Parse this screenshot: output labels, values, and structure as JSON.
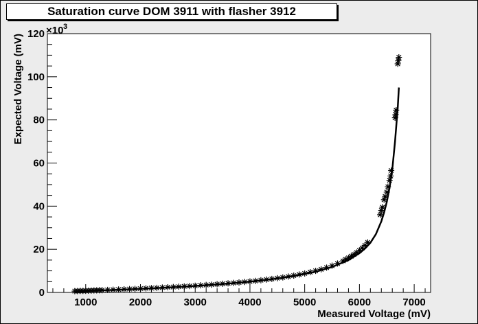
{
  "chart_data": {
    "type": "scatter",
    "title": "Saturation curve DOM 3911 with flasher 3912",
    "xlabel": "Measured Voltage (mV)",
    "ylabel": "Expected Voltage (mV)",
    "y_multiplier_label": "×10",
    "y_multiplier_exponent": "3",
    "xlim": [
      300,
      7300
    ],
    "ylim": [
      0,
      120000
    ],
    "x_ticks": [
      1000,
      2000,
      3000,
      4000,
      5000,
      6000,
      7000
    ],
    "x_tick_labels": [
      "1000",
      "2000",
      "3000",
      "4000",
      "5000",
      "6000",
      "7000"
    ],
    "y_ticks": [
      0,
      20000,
      40000,
      60000,
      80000,
      100000,
      120000
    ],
    "y_tick_labels": [
      "0",
      "20",
      "40",
      "60",
      "80",
      "100",
      "120"
    ],
    "grid": false,
    "marker": "*",
    "colors": {
      "frame_bg": "#ececec",
      "plot_bg": "#ffffff",
      "ink": "#000000"
    },
    "series": [
      {
        "points": [
          [
            800,
            600
          ],
          [
            850,
            650
          ],
          [
            900,
            700
          ],
          [
            950,
            700
          ],
          [
            1000,
            750
          ],
          [
            1050,
            800
          ],
          [
            1100,
            850
          ],
          [
            1150,
            900
          ],
          [
            1200,
            950
          ],
          [
            1250,
            1000
          ],
          [
            1300,
            1050
          ],
          [
            1400,
            1150
          ],
          [
            1500,
            1250
          ],
          [
            1600,
            1350
          ],
          [
            1700,
            1450
          ],
          [
            1800,
            1550
          ],
          [
            1900,
            1650
          ],
          [
            2000,
            1750
          ],
          [
            2100,
            1900
          ],
          [
            2200,
            2000
          ],
          [
            2300,
            2100
          ],
          [
            2400,
            2250
          ],
          [
            2500,
            2400
          ],
          [
            2600,
            2500
          ],
          [
            2700,
            2650
          ],
          [
            2800,
            2800
          ],
          [
            2900,
            2950
          ],
          [
            3000,
            3100
          ],
          [
            3100,
            3300
          ],
          [
            3200,
            3450
          ],
          [
            3300,
            3600
          ],
          [
            3400,
            3800
          ],
          [
            3500,
            4000
          ],
          [
            3600,
            4200
          ],
          [
            3700,
            4400
          ],
          [
            3800,
            4600
          ],
          [
            3900,
            4850
          ],
          [
            4000,
            5100
          ],
          [
            4100,
            5350
          ],
          [
            4200,
            5650
          ],
          [
            4300,
            5950
          ],
          [
            4400,
            6250
          ],
          [
            4500,
            6600
          ],
          [
            4600,
            6950
          ],
          [
            4700,
            7350
          ],
          [
            4800,
            7800
          ],
          [
            4900,
            8300
          ],
          [
            5000,
            8800
          ],
          [
            5100,
            9400
          ],
          [
            5200,
            10000
          ],
          [
            5300,
            10700
          ],
          [
            5400,
            11500
          ],
          [
            5500,
            12400
          ],
          [
            5600,
            13400
          ],
          [
            5700,
            14600
          ],
          [
            5750,
            15300
          ],
          [
            5800,
            16000
          ],
          [
            5850,
            16800
          ],
          [
            5900,
            17600
          ],
          [
            5950,
            18500
          ],
          [
            6000,
            19500
          ],
          [
            6050,
            20600
          ],
          [
            6100,
            21800
          ],
          [
            6150,
            23200
          ],
          [
            6380,
            36000
          ],
          [
            6400,
            38000
          ],
          [
            6420,
            39500
          ],
          [
            6450,
            43000
          ],
          [
            6470,
            44500
          ],
          [
            6500,
            46500
          ],
          [
            6520,
            49000
          ],
          [
            6550,
            52000
          ],
          [
            6570,
            54000
          ],
          [
            6580,
            56500
          ],
          [
            6650,
            81000
          ],
          [
            6660,
            82500
          ],
          [
            6670,
            84500
          ],
          [
            6700,
            106000
          ],
          [
            6710,
            107500
          ],
          [
            6720,
            109000
          ]
        ]
      }
    ],
    "fit_curve": {
      "points": [
        [
          800,
          600
        ],
        [
          1200,
          900
        ],
        [
          1600,
          1250
        ],
        [
          2000,
          1700
        ],
        [
          2400,
          2150
        ],
        [
          2800,
          2700
        ],
        [
          3200,
          3350
        ],
        [
          3600,
          4100
        ],
        [
          4000,
          5000
        ],
        [
          4400,
          6100
        ],
        [
          4800,
          7600
        ],
        [
          5200,
          9600
        ],
        [
          5500,
          11800
        ],
        [
          5800,
          15000
        ],
        [
          6000,
          18200
        ],
        [
          6100,
          20300
        ],
        [
          6200,
          23000
        ],
        [
          6300,
          27000
        ],
        [
          6400,
          33000
        ],
        [
          6450,
          37000
        ],
        [
          6500,
          42000
        ],
        [
          6550,
          48500
        ],
        [
          6600,
          57000
        ],
        [
          6650,
          70000
        ],
        [
          6700,
          86000
        ],
        [
          6720,
          95000
        ]
      ]
    }
  }
}
